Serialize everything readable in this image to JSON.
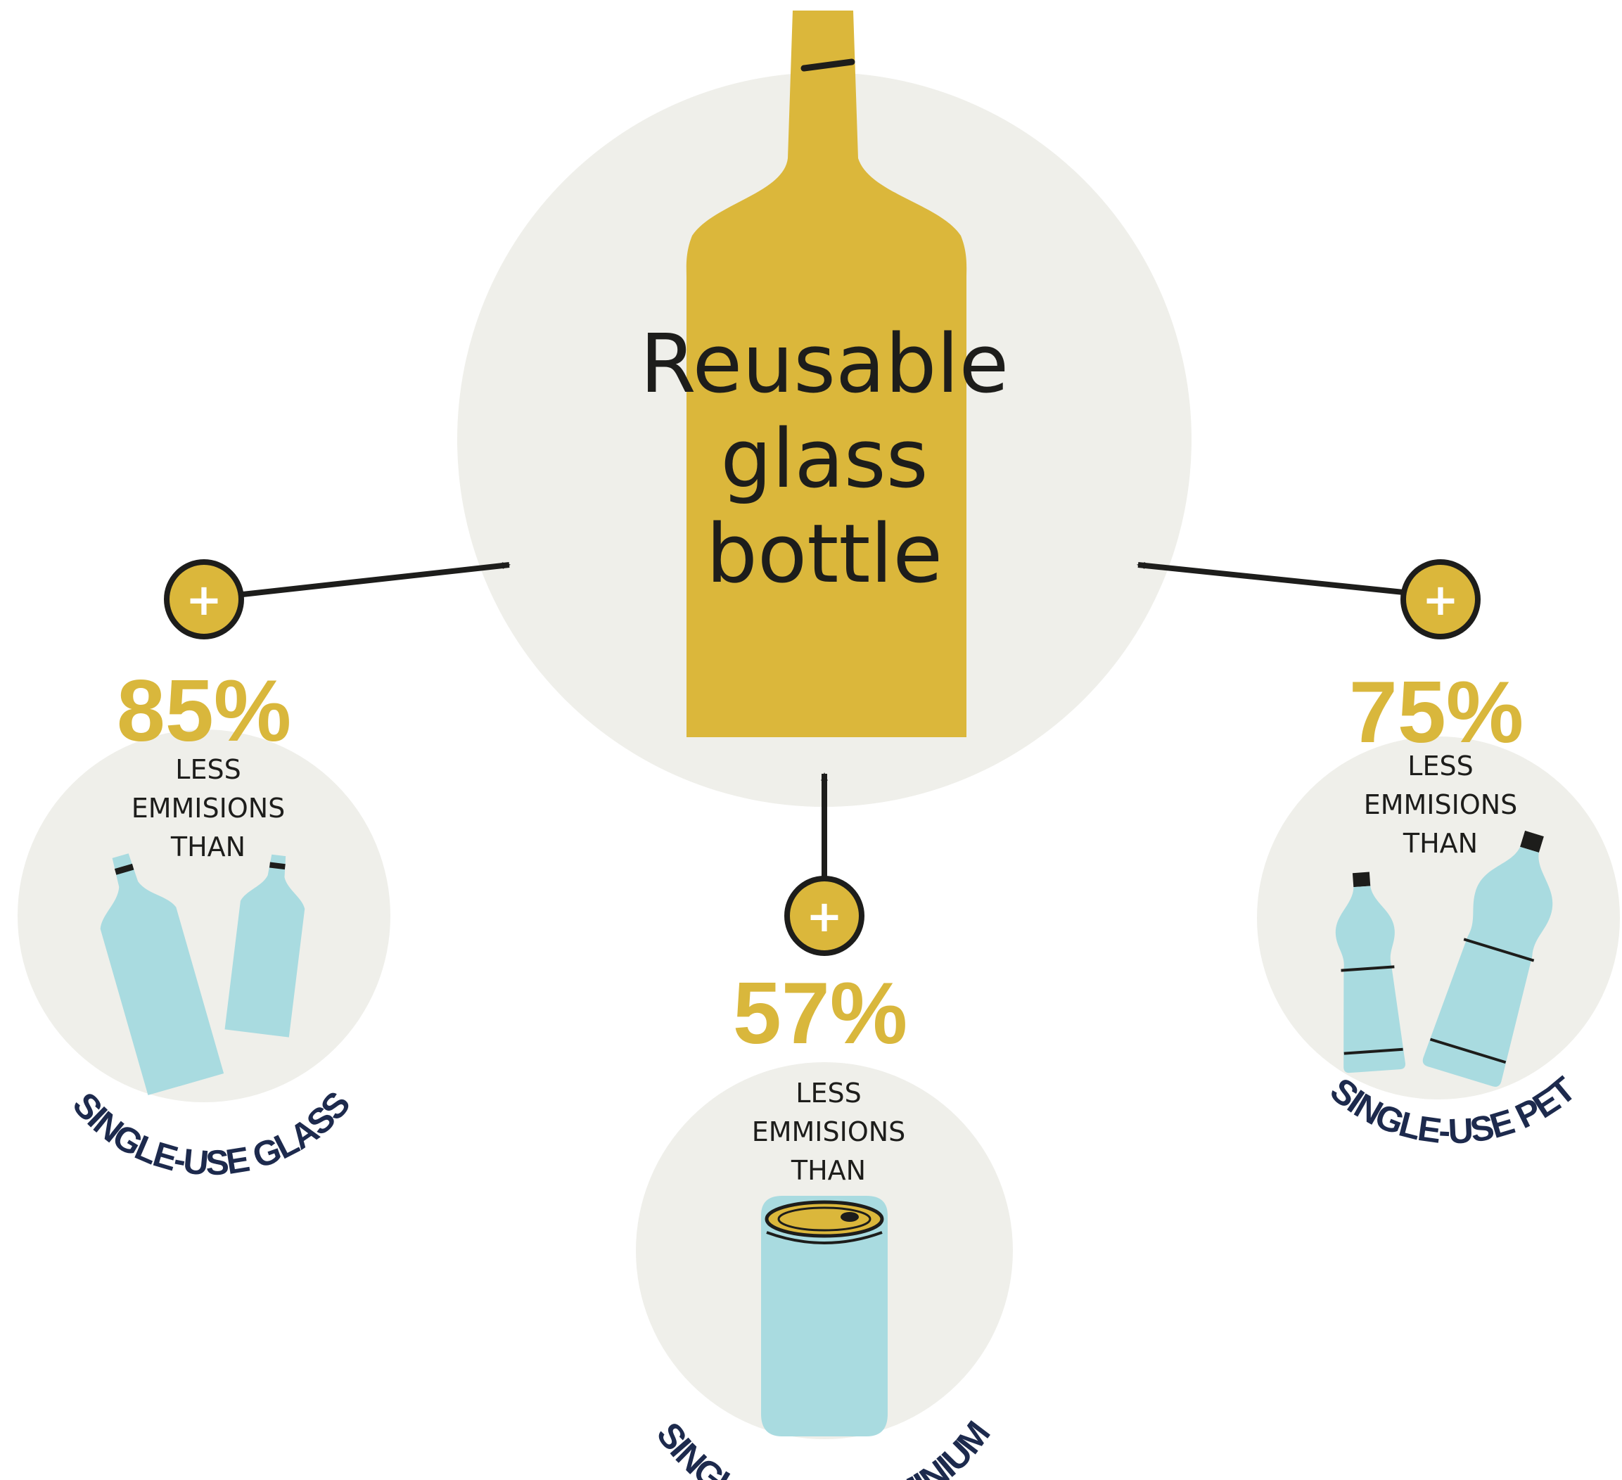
{
  "center": {
    "label_lines": [
      "Reusable",
      "glass",
      "bottle"
    ]
  },
  "comparisons": [
    {
      "id": "glass",
      "percent": "85%",
      "caption_lines": [
        "LESS",
        "EMMISIONS",
        "THAN"
      ],
      "label": "SINGLE-USE GLASS"
    },
    {
      "id": "aluminium",
      "percent": "57%",
      "caption_lines": [
        "LESS",
        "EMMISIONS",
        "THAN"
      ],
      "label": "SINGLE-USE ALUMINIUM"
    },
    {
      "id": "pet",
      "percent": "75%",
      "caption_lines": [
        "LESS",
        "EMMISIONS",
        "THAN"
      ],
      "label": "SINGLE-USE PET"
    }
  ],
  "plus_symbol": "+",
  "icons": {
    "center": "glass-bottle-icon",
    "glass": "glass-bottles-icon",
    "aluminium": "aluminium-can-icon",
    "pet": "pet-bottles-icon",
    "badge": "plus-badge-icon"
  },
  "colors": {
    "circle_bg": "#efefea",
    "accent_gold": "#dbb73b",
    "light_blue": "#a9dbe0",
    "navy": "#1d2a4d",
    "ink": "#1d1d1b"
  }
}
